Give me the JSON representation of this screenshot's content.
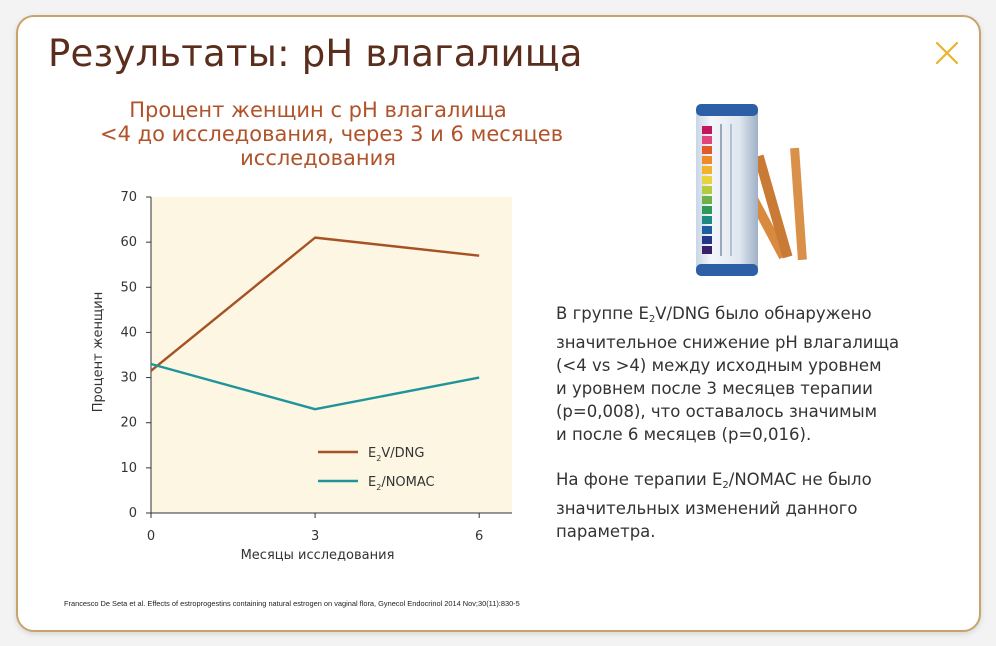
{
  "slide": {
    "title": "Результаты: pH влагалища",
    "close_icon": "close-icon",
    "accent_color": "#e8b530",
    "border_color": "#c9a36e"
  },
  "chart_data": {
    "type": "line",
    "title_lines": [
      "Процент женщин с pH влагалища",
      "<4 до исследования, через 3 и 6 месяцев",
      "исследования"
    ],
    "xlabel": "Месяцы исследования",
    "ylabel": "Процент женщин",
    "x": [
      0,
      3,
      6
    ],
    "x_ticks": [
      "0",
      "3",
      "6"
    ],
    "y_ticks": [
      "0",
      "10",
      "20",
      "30",
      "40",
      "50",
      "60",
      "70"
    ],
    "ylim": [
      0,
      70
    ],
    "xlim": [
      0,
      6.6
    ],
    "grid": false,
    "plot_background": "#fdf6e3",
    "legend_position": "bottom-right inside",
    "series": [
      {
        "name": "E2V/DNG",
        "name_main": "E",
        "name_sub": "2",
        "name_rest": "V/DNG",
        "color": "#a65224",
        "values": [
          31.5,
          61,
          57
        ]
      },
      {
        "name": "E2/NOMAC",
        "name_main": "E",
        "name_sub": "2",
        "name_rest": "/NOMAC",
        "color": "#1f949a",
        "values": [
          33,
          23,
          30
        ]
      }
    ]
  },
  "text": {
    "p1": {
      "l1a": "В группе E",
      "l1sub": "2",
      "l1b": "V/DNG было обнаружено",
      "l2": "значительное снижение pH влагалища",
      "l3": "(<4 vs >4) между исходным уровнем",
      "l4": "и уровнем после 3 месяцев терапии",
      "l5": "(p=0,008), что оставалось значимым",
      "l6": "и после 6 месяцев (p=0,016)."
    },
    "p2": {
      "l1a": "На фоне терапии E",
      "l1sub": "2",
      "l1b": "/NOMAC не было",
      "l2": "значительных изменений данного",
      "l3": "параметра."
    }
  },
  "image": {
    "name": "ph-test-strips-tube"
  },
  "citation": "Francesco De Seta et al. Effects of estroprogestins containing natural estrogen on vaginal flora, Gynecol Endocrinol 2014 Nov;30(11):830-5"
}
